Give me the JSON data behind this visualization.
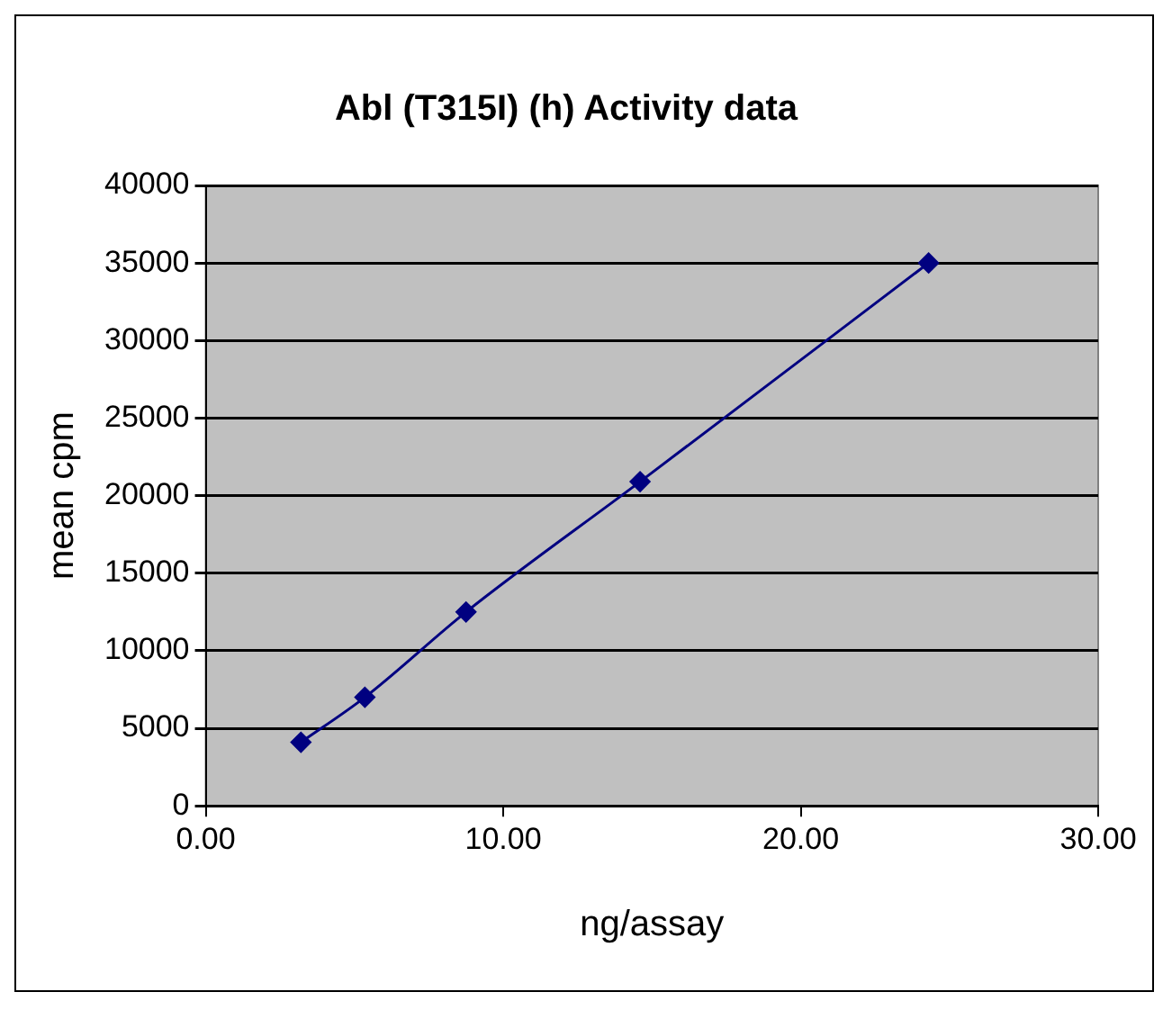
{
  "chart_data": {
    "type": "line",
    "title": "Abl (T315I) (h) Activity data",
    "xlabel": "ng/assay",
    "ylabel": "mean cpm",
    "x": [
      3.2,
      5.35,
      8.75,
      14.6,
      24.3
    ],
    "series": [
      {
        "color": "#000080",
        "values": [
          4100,
          7000,
          12500,
          20900,
          35000
        ]
      }
    ],
    "xlim": [
      0,
      30
    ],
    "xticks": [
      {
        "value": 0,
        "label": "0.00"
      },
      {
        "value": 10,
        "label": "10.00"
      },
      {
        "value": 20,
        "label": "20.00"
      },
      {
        "value": 30,
        "label": "30.00"
      }
    ],
    "ylim": [
      0,
      40000
    ],
    "yticks": [
      0,
      5000,
      10000,
      15000,
      20000,
      25000,
      30000,
      35000,
      40000
    ],
    "grid": "y",
    "legend": false,
    "marker": "diamond",
    "line_style": "solid"
  }
}
